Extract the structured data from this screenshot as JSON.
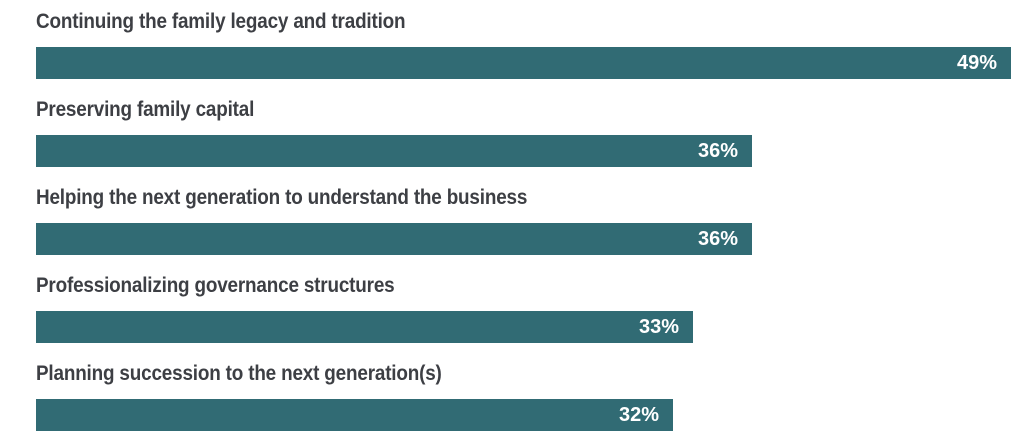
{
  "chart_data": {
    "type": "bar",
    "orientation": "horizontal",
    "categories": [
      "Continuing the family legacy and tradition",
      "Preserving family capital",
      "Helping the next generation to understand the business",
      "Professionalizing governance structures",
      "Planning succession to the next generation(s)"
    ],
    "values": [
      49,
      36,
      36,
      33,
      32
    ],
    "value_labels": [
      "49%",
      "36%",
      "36%",
      "33%",
      "32%"
    ],
    "bar_color": "#316b74",
    "label_color": "#3d3f44",
    "grid": false,
    "legend": "none"
  }
}
